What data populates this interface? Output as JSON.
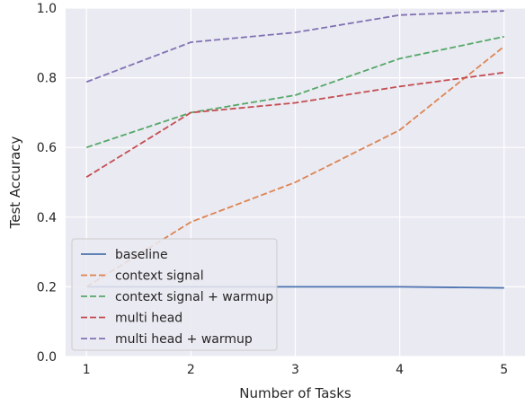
{
  "chart_data": {
    "type": "line",
    "title": "",
    "xlabel": "Number of Tasks",
    "ylabel": "Test Accuracy",
    "x": [
      1,
      2,
      3,
      4,
      5
    ],
    "xlim": [
      0.8,
      5.2
    ],
    "ylim": [
      0.0,
      1.0
    ],
    "xticks": [
      "1",
      "2",
      "3",
      "4",
      "5"
    ],
    "yticks": [
      "0.0",
      "0.2",
      "0.4",
      "0.6",
      "0.8",
      "1.0"
    ],
    "grid": true,
    "legend_position": "bottom-left",
    "series": [
      {
        "name": "baseline",
        "values": [
          0.2,
          0.2,
          0.2,
          0.2,
          0.197
        ],
        "color": "#4c72b0",
        "dash": "solid"
      },
      {
        "name": "context signal",
        "values": [
          0.2,
          0.386,
          0.5,
          0.65,
          0.89
        ],
        "color": "#dd8452",
        "dash": "dashed"
      },
      {
        "name": "context signal + warmup",
        "values": [
          0.6,
          0.7,
          0.75,
          0.855,
          0.918
        ],
        "color": "#55a868",
        "dash": "dashed"
      },
      {
        "name": "multi head",
        "values": [
          0.515,
          0.7,
          0.728,
          0.775,
          0.815
        ],
        "color": "#c44e52",
        "dash": "dashed"
      },
      {
        "name": "multi head + warmup",
        "values": [
          0.788,
          0.902,
          0.93,
          0.98,
          0.992
        ],
        "color": "#8172b3",
        "dash": "dashed"
      }
    ]
  }
}
